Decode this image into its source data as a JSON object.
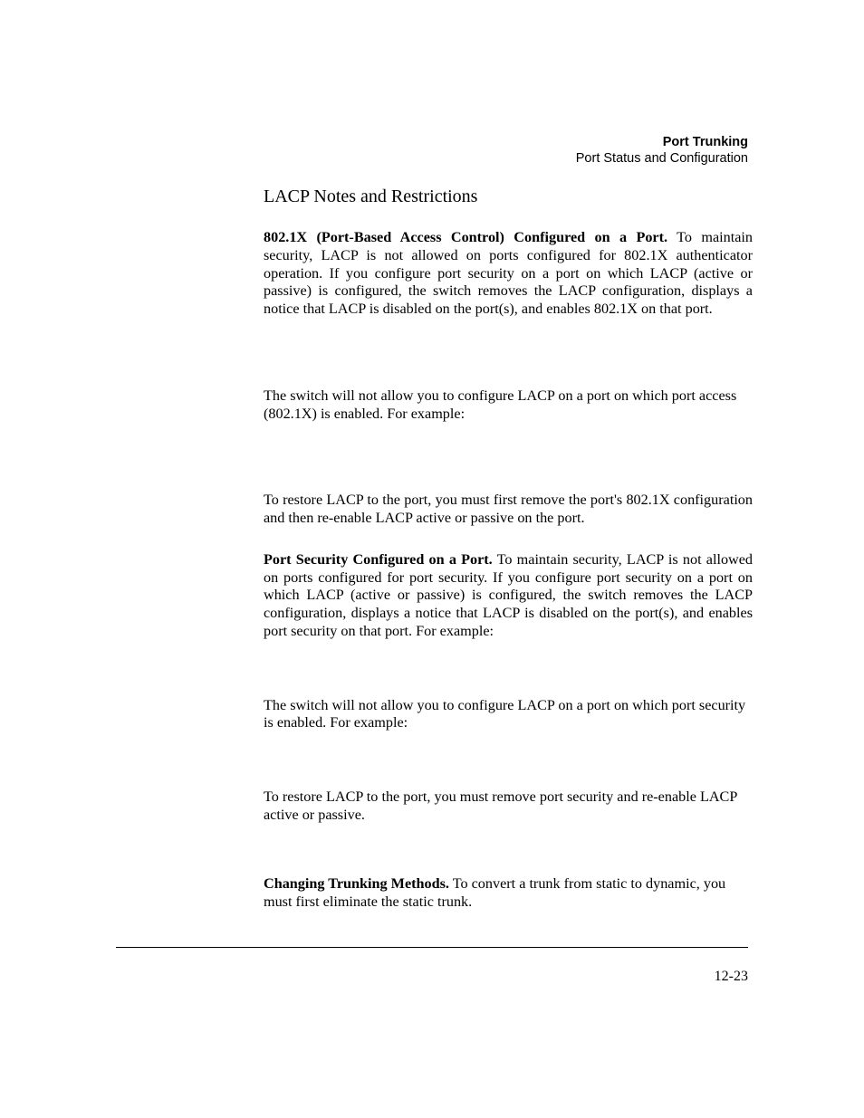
{
  "header": {
    "chapter": "Port Trunking",
    "section": "Port Status and Configuration"
  },
  "title": "LACP Notes and Restrictions",
  "paragraphs": {
    "p1_lead": "802.1X (Port-Based Access Control) Configured on a Port.",
    "p1_body": "  To maintain security, LACP is not allowed on ports configured for 802.1X authenticator operation. If you configure port security on a port on which LACP (active or passive) is configured, the switch removes the LACP configuration, displays a notice that LACP is disabled on the port(s), and enables 802.1X on that port.",
    "p2": "The switch will not allow you to configure LACP on a port on which port access (802.1X) is enabled. For example:",
    "p3": "To restore LACP to the port, you must first remove the port's 802.1X configuration and then re-enable LACP active or passive on the port.",
    "p4_lead": "Port Security Configured on a Port.",
    "p4_body": "  To maintain security, LACP is not allowed on ports configured for port security. If you configure port security on a port on which LACP (active or passive) is configured, the switch removes the LACP configuration, displays a notice that LACP is disabled on the port(s), and enables port security on that port. For example:",
    "p5": "The switch will not allow you to configure LACP on a port on which port security is enabled. For example:",
    "p6": "To restore LACP to the port, you must remove port security and re-enable LACP active or passive.",
    "p7_lead": "Changing Trunking Methods.",
    "p7_body": "  To convert a trunk from static to dynamic, you must first eliminate the static trunk."
  },
  "page_number": "12-23"
}
